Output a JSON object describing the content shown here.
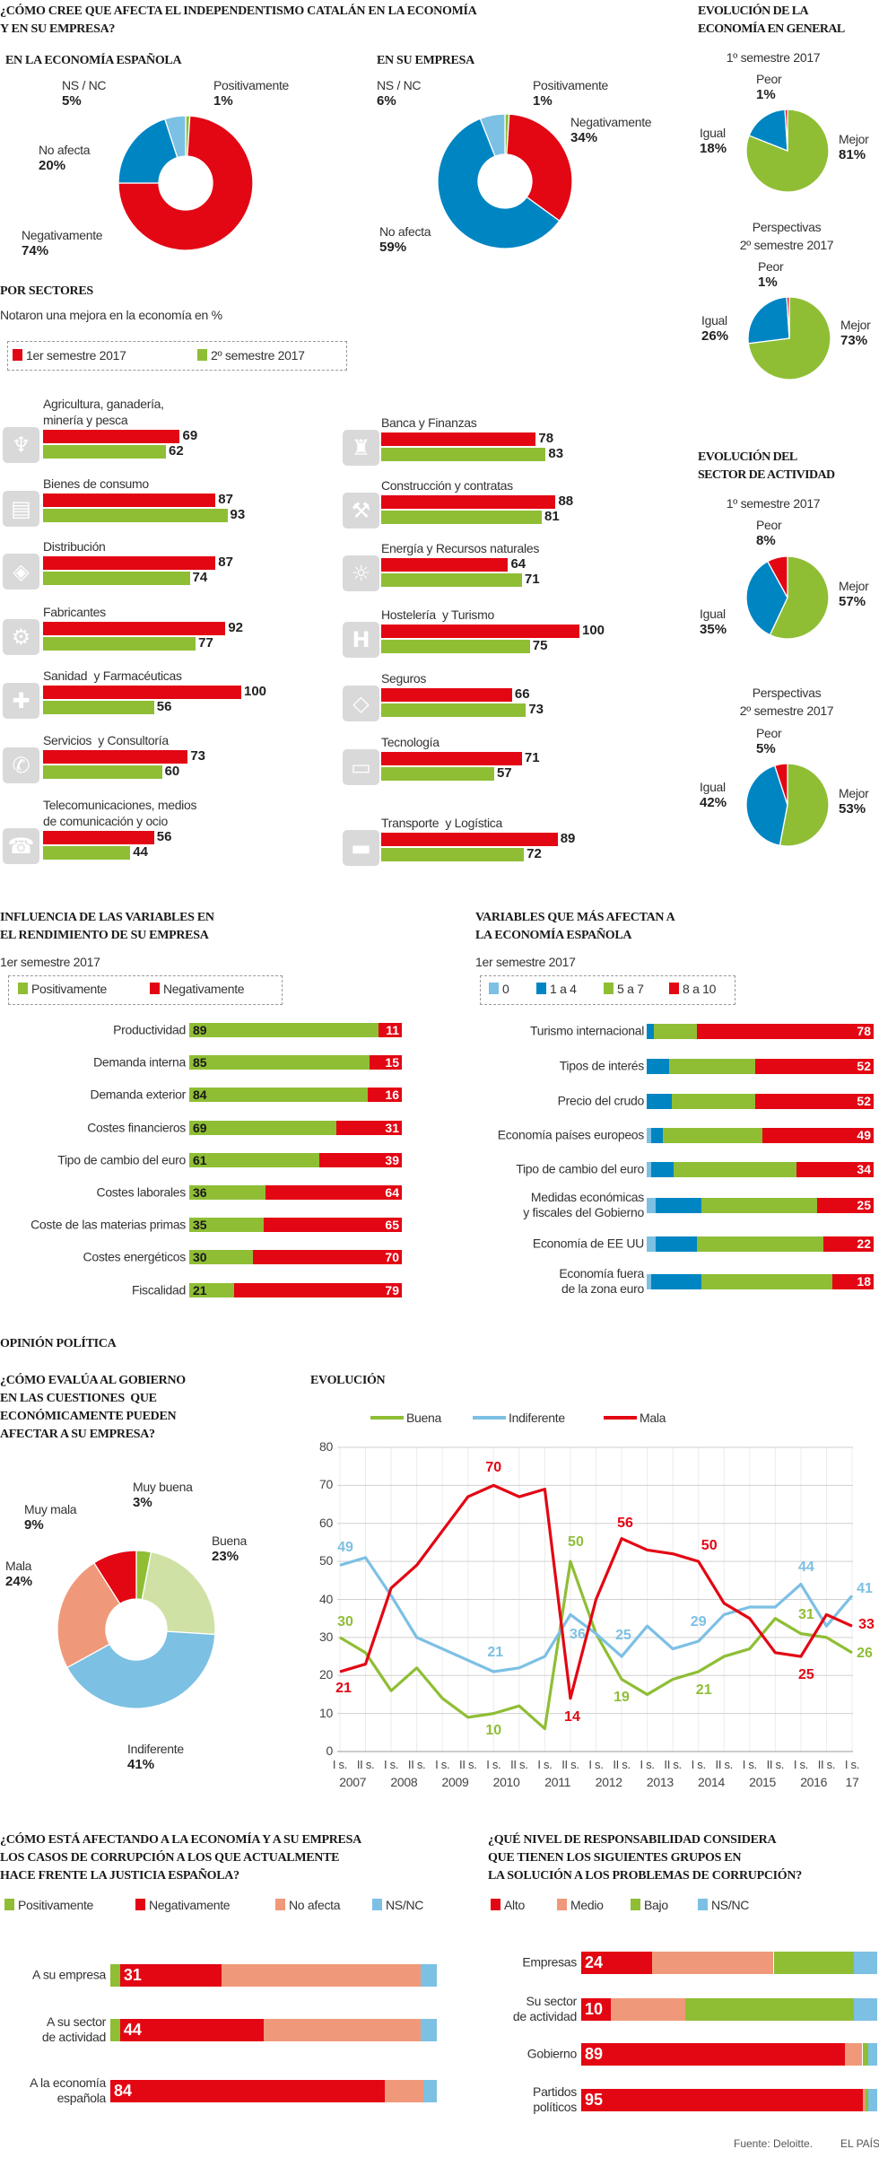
{
  "sections": {
    "main_question": "¿CÓMO CREE QUE AFECTA EL INDEPENDENTISMO CATALÁN EN LA ECONOMÍA\nY EN SU EMPRESA?",
    "economy_general_title": "EVOLUCIÓN DE LA\nECONOMÍA EN GENERAL",
    "by_sector_title": "POR SECTORES",
    "by_sector_subtitle": "Notaron una mejora en la economía en %",
    "sector_activity_title": "EVOLUCIÓN DEL\nSECTOR DE ACTIVIDAD",
    "political_title": "OPINIÓN POLÍTICA",
    "gov_question": "¿CÓMO EVALÚA AL GOBIERNO\nEN LAS CUESTIONES  QUE\nECONÓMICAMENTE PUEDEN\nAFECTAR A SU EMPRESA?",
    "footer_source": "Fuente: Deloitte.",
    "footer_brand": "EL PAÍS"
  },
  "chart_data": [
    {
      "type": "pie",
      "title": "EN LA ECONOMÍA ESPAÑOLA",
      "slices": [
        {
          "label": "Positivamente",
          "value": 1,
          "color": "#8fbe35"
        },
        {
          "label": "Negativamente",
          "value": 74,
          "color": "#e30613"
        },
        {
          "label": "No afecta",
          "value": 20,
          "color": "#0085c3"
        },
        {
          "label": "NS / NC",
          "value": 5,
          "color": "#7cc0e4"
        }
      ]
    },
    {
      "type": "pie",
      "title": "EN SU EMPRESA",
      "slices": [
        {
          "label": "Positivamente",
          "value": 1,
          "color": "#8fbe35"
        },
        {
          "label": "Negativamente",
          "value": 34,
          "color": "#e30613"
        },
        {
          "label": "No afecta",
          "value": 59,
          "color": "#0085c3"
        },
        {
          "label": "NS / NC",
          "value": 6,
          "color": "#7cc0e4"
        }
      ]
    },
    {
      "type": "pie",
      "subtitle": "1º semestre 2017",
      "slices": [
        {
          "label": "Mejor",
          "value": 81,
          "color": "#8fbe35"
        },
        {
          "label": "Igual",
          "value": 18,
          "color": "#0085c3"
        },
        {
          "label": "Peor",
          "value": 1,
          "color": "#e30613"
        }
      ]
    },
    {
      "type": "pie",
      "subtitle": "Perspectivas\n2º semestre 2017",
      "slices": [
        {
          "label": "Mejor",
          "value": 73,
          "color": "#8fbe35"
        },
        {
          "label": "Igual",
          "value": 26,
          "color": "#0085c3"
        },
        {
          "label": "Peor",
          "value": 1,
          "color": "#e30613"
        }
      ]
    },
    {
      "type": "bar",
      "series": [
        {
          "name": "1er semestre 2017",
          "color": "#e30613"
        },
        {
          "name": "2º semestre 2017",
          "color": "#8fbe35"
        }
      ],
      "sectors": [
        {
          "name": "Agricultura, ganadería,\nminería y pesca",
          "icon": "farm-icon",
          "values": [
            69,
            62
          ]
        },
        {
          "name": "Bienes de consumo",
          "icon": "shopping-icon",
          "values": [
            87,
            93
          ]
        },
        {
          "name": "Distribución",
          "icon": "network-icon",
          "values": [
            87,
            74
          ]
        },
        {
          "name": "Fabricantes",
          "icon": "gear-icon",
          "values": [
            92,
            77
          ]
        },
        {
          "name": "Sanidad  y Farmacéuticas",
          "icon": "medical-cross-icon",
          "values": [
            100,
            56
          ]
        },
        {
          "name": "Servicios  y Consultoría",
          "icon": "phone-service-icon",
          "values": [
            73,
            60
          ]
        },
        {
          "name": "Telecomunicaciones, medios\nde comunicación y ocio",
          "icon": "telephone-icon",
          "values": [
            56,
            44
          ]
        },
        {
          "name": "Banca y Finanzas",
          "icon": "bank-icon",
          "values": [
            78,
            83
          ]
        },
        {
          "name": "Construcción y contratas",
          "icon": "crane-icon",
          "values": [
            88,
            81
          ]
        },
        {
          "name": "Energía y Recursos naturales",
          "icon": "lightbulb-icon",
          "values": [
            64,
            71
          ]
        },
        {
          "name": "Hostelería  y Turismo",
          "icon": "hotel-icon",
          "values": [
            100,
            75
          ]
        },
        {
          "name": "Seguros",
          "icon": "shield-icon",
          "values": [
            66,
            73
          ]
        },
        {
          "name": "Tecnología",
          "icon": "computer-icon",
          "values": [
            71,
            57
          ]
        },
        {
          "name": "Transporte  y Logística",
          "icon": "bus-icon",
          "values": [
            89,
            72
          ]
        }
      ]
    },
    {
      "type": "pie",
      "subtitle": "1º semestre 2017",
      "slices": [
        {
          "label": "Mejor",
          "value": 57,
          "color": "#8fbe35"
        },
        {
          "label": "Igual",
          "value": 35,
          "color": "#0085c3"
        },
        {
          "label": "Peor",
          "value": 8,
          "color": "#e30613"
        }
      ]
    },
    {
      "type": "pie",
      "subtitle": "Perspectivas\n2º semestre 2017",
      "slices": [
        {
          "label": "Mejor",
          "value": 53,
          "color": "#8fbe35"
        },
        {
          "label": "Igual",
          "value": 42,
          "color": "#0085c3"
        },
        {
          "label": "Peor",
          "value": 5,
          "color": "#e30613"
        }
      ]
    },
    {
      "type": "bar",
      "title": "INFLUENCIA DE LAS VARIABLES EN\nEL RENDIMIENTO DE SU EMPRESA",
      "subtitle": "1er semestre 2017",
      "categories": [
        "Productividad",
        "Demanda interna",
        "Demanda exterior",
        "Costes financieros",
        "Tipo de cambio del euro",
        "Costes laborales",
        "Coste de las materias primas",
        "Costes energéticos",
        "Fiscalidad"
      ],
      "series": [
        {
          "name": "Positivamente",
          "color": "#8fbe35",
          "values": [
            89,
            85,
            84,
            69,
            61,
            36,
            35,
            30,
            21
          ]
        },
        {
          "name": "Negativamente",
          "color": "#e30613",
          "values": [
            11,
            15,
            16,
            31,
            39,
            64,
            65,
            70,
            79
          ]
        }
      ]
    },
    {
      "type": "bar",
      "title": "VARIABLES QUE MÁS AFECTAN A\nLA ECONOMÍA ESPAÑOLA",
      "subtitle": "1er semestre 2017",
      "categories": [
        "Turismo internacional",
        "Tipos de interés",
        "Precio del crudo",
        "Economía países europeos",
        "Tipo de cambio del euro",
        "Medidas económicas\ny fiscales del Gobierno",
        "Economía de EE UU",
        "Economía fuera\nde la zona euro"
      ],
      "series": [
        {
          "name": "0",
          "color": "#7cc0e4",
          "values": [
            0,
            0,
            0,
            2,
            2,
            4,
            4,
            2
          ]
        },
        {
          "name": "1 a 4",
          "color": "#0085c3",
          "values": [
            3,
            10,
            11,
            5,
            10,
            20,
            18,
            22
          ]
        },
        {
          "name": "5 a 7",
          "color": "#8fbe35",
          "values": [
            19,
            38,
            37,
            44,
            54,
            51,
            56,
            58
          ]
        },
        {
          "name": "8 a 10",
          "color": "#e30613",
          "values": [
            78,
            52,
            52,
            49,
            34,
            25,
            22,
            18
          ]
        }
      ]
    },
    {
      "type": "pie",
      "slices": [
        {
          "label": "Muy buena",
          "value": 3,
          "color": "#8fbe35"
        },
        {
          "label": "Buena",
          "value": 23,
          "color": "#d0e1a5"
        },
        {
          "label": "Indiferente",
          "value": 41,
          "color": "#7cc0e4"
        },
        {
          "label": "Mala",
          "value": 24,
          "color": "#f0997a"
        },
        {
          "label": "Muy mala",
          "value": 9,
          "color": "#e30613"
        }
      ]
    },
    {
      "type": "line",
      "title": "EVOLUCIÓN",
      "ylim": [
        0,
        80
      ],
      "yticks": [
        0,
        10,
        20,
        30,
        40,
        50,
        60,
        70,
        80
      ],
      "grid": true,
      "legend": "top",
      "x_tick_labels": [
        "I s.",
        "II s.",
        "I s.",
        "II s.",
        "I s.",
        "II s.",
        "I s.",
        "II s.",
        "I s.",
        "II s.",
        "I s.",
        "II s.",
        "I s.",
        "II s.",
        "I s.",
        "II s.",
        "I s.",
        "II s.",
        "I s.",
        "II s.",
        "I s."
      ],
      "x_year_labels": [
        "2007",
        "2008",
        "2009",
        "2010",
        "2011",
        "2012",
        "2013",
        "2014",
        "2015",
        "2016",
        "17"
      ],
      "series": [
        {
          "name": "Buena",
          "color": "#8fbe35",
          "values": [
            30,
            26,
            16,
            22,
            14,
            9,
            10,
            12,
            6,
            50,
            31,
            19,
            15,
            19,
            21,
            25,
            27,
            35,
            31,
            30,
            26
          ],
          "labeled": [
            0,
            6,
            9,
            11,
            14,
            18,
            20
          ]
        },
        {
          "name": "Indiferente",
          "color": "#7cc0e4",
          "values": [
            49,
            51,
            41,
            30,
            27,
            24,
            21,
            22,
            25,
            36,
            31,
            25,
            33,
            27,
            29,
            36,
            38,
            38,
            44,
            33,
            41
          ],
          "labeled": [
            0,
            6,
            9,
            11,
            14,
            18,
            20
          ]
        },
        {
          "name": "Mala",
          "color": "#e30613",
          "values": [
            21,
            23,
            43,
            49,
            58,
            67,
            70,
            67,
            69,
            14,
            40,
            56,
            53,
            52,
            50,
            39,
            35,
            26,
            25,
            36,
            33
          ],
          "labeled": [
            0,
            6,
            9,
            11,
            14,
            18,
            20
          ]
        }
      ]
    },
    {
      "type": "bar",
      "title": "¿CÓMO ESTÁ AFECTANDO A LA ECONOMÍA Y A SU EMPRESA\nLOS CASOS DE CORRUPCIÓN A LOS QUE ACTUALMENTE\nHACE FRENTE LA JUSTICIA ESPAÑOLA?",
      "categories": [
        "A su empresa",
        "A su sector\nde actividad",
        "A la economía\nespañola"
      ],
      "series": [
        {
          "name": "Positivamente",
          "color": "#8fbe35",
          "values": [
            3,
            3,
            0
          ]
        },
        {
          "name": "Negativamente",
          "color": "#e30613",
          "values": [
            31,
            44,
            84
          ]
        },
        {
          "name": "No afecta",
          "color": "#f0997a",
          "values": [
            61,
            48,
            12
          ]
        },
        {
          "name": "NS/NC",
          "color": "#7cc0e4",
          "values": [
            5,
            5,
            4
          ]
        }
      ]
    },
    {
      "type": "bar",
      "title": "¿QUÉ NIVEL DE RESPONSABILIDAD CONSIDERA\nQUE TIENEN LOS SIGUIENTES GRUPOS EN\nLA SOLUCIÓN A LOS PROBLEMAS DE CORRUPCIÓN?",
      "categories": [
        "Empresas",
        "Su sector\nde actividad",
        "Gobierno",
        "Partidos\npolíticos"
      ],
      "series": [
        {
          "name": "Alto",
          "color": "#e30613",
          "values": [
            24,
            10,
            89,
            95
          ]
        },
        {
          "name": "Medio",
          "color": "#f0997a",
          "values": [
            41,
            25,
            6,
            1
          ]
        },
        {
          "name": "Bajo",
          "color": "#8fbe35",
          "values": [
            27,
            57,
            2,
            1
          ]
        },
        {
          "name": "NS/NC",
          "color": "#7cc0e4",
          "values": [
            8,
            8,
            3,
            3
          ]
        }
      ]
    }
  ]
}
